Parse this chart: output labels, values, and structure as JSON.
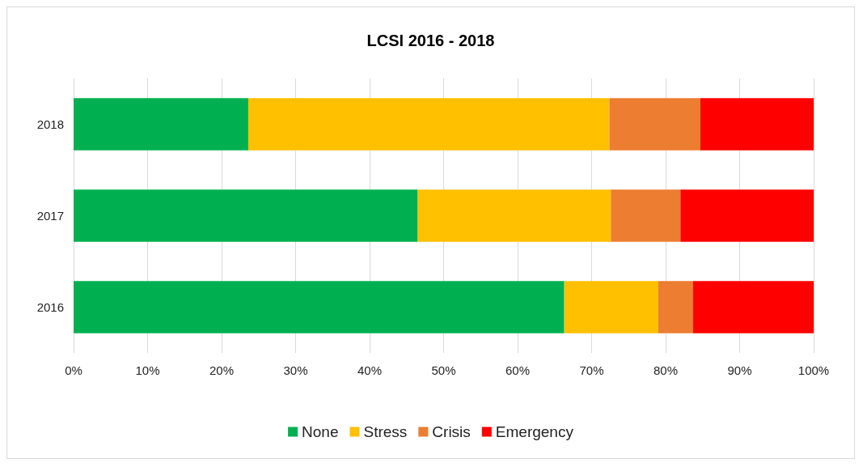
{
  "chart_data": {
    "type": "bar",
    "title": "LCSI 2016 - 2018",
    "orientation": "horizontal",
    "stacked": true,
    "categories": [
      "2018",
      "2017",
      "2016"
    ],
    "series": [
      {
        "name": "None",
        "color": "#00b050",
        "values": [
          23.6,
          46.5,
          66.3
        ]
      },
      {
        "name": "Stress",
        "color": "#ffc000",
        "values": [
          48.8,
          26.1,
          12.7
        ]
      },
      {
        "name": "Crisis",
        "color": "#ed7d31",
        "values": [
          12.3,
          9.4,
          4.7
        ]
      },
      {
        "name": "Emergency",
        "color": "#ff0000",
        "values": [
          15.3,
          18.0,
          16.3
        ]
      }
    ],
    "xlim": [
      0,
      100
    ],
    "xticks": [
      {
        "value": 0,
        "label": "0%"
      },
      {
        "value": 10,
        "label": "10%"
      },
      {
        "value": 20,
        "label": "20%"
      },
      {
        "value": 30,
        "label": "30%"
      },
      {
        "value": 40,
        "label": "40%"
      },
      {
        "value": 50,
        "label": "50%"
      },
      {
        "value": 60,
        "label": "60%"
      },
      {
        "value": 70,
        "label": "70%"
      },
      {
        "value": 80,
        "label": "80%"
      },
      {
        "value": 90,
        "label": "90%"
      },
      {
        "value": 100,
        "label": "100%"
      }
    ],
    "grid": "x",
    "legend": "bottom"
  }
}
